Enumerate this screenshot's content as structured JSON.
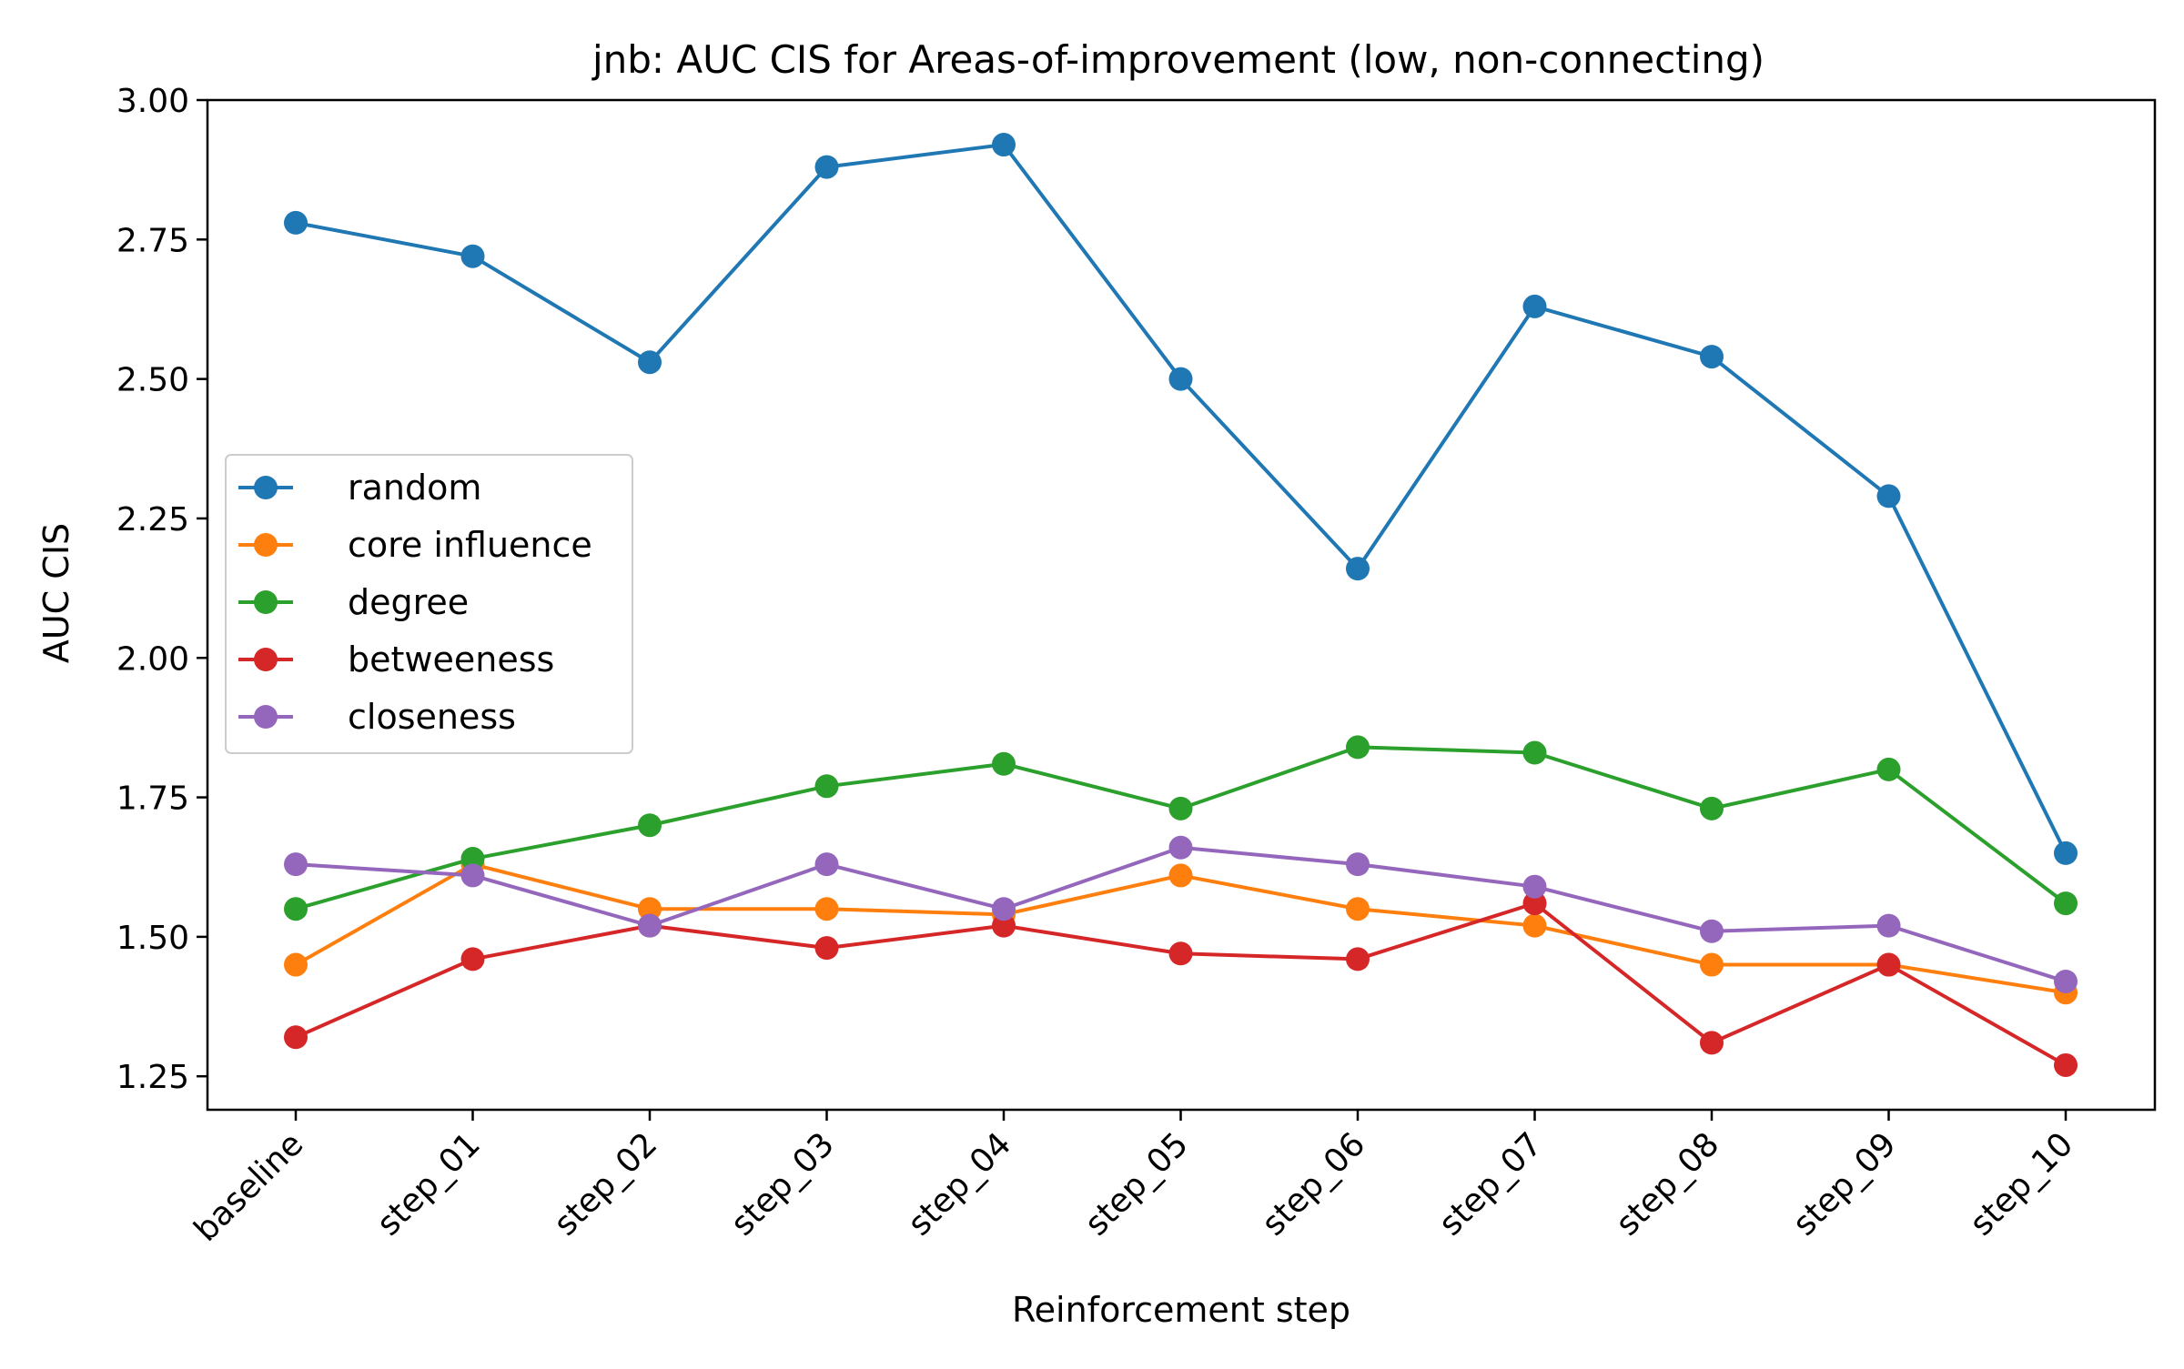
{
  "chart_data": {
    "type": "line",
    "title": "jnb: AUC CIS for Areas-of-improvement (low, non-connecting)",
    "xlabel": "Reinforcement step",
    "ylabel": "AUC CIS",
    "categories": [
      "baseline",
      "step_01",
      "step_02",
      "step_03",
      "step_04",
      "step_05",
      "step_06",
      "step_07",
      "step_08",
      "step_09",
      "step_10"
    ],
    "ylim": [
      1.19,
      3.0
    ],
    "yticks": [
      1.25,
      1.5,
      1.75,
      2.0,
      2.25,
      2.5,
      2.75,
      3.0
    ],
    "ytick_labels": [
      "1.25",
      "1.50",
      "1.75",
      "2.00",
      "2.25",
      "2.50",
      "2.75",
      "3.00"
    ],
    "grid": false,
    "legend_position": "center-left",
    "series": [
      {
        "name": "random",
        "color": "#1f77b4",
        "values": [
          2.78,
          2.72,
          2.53,
          2.88,
          2.92,
          2.5,
          2.16,
          2.63,
          2.54,
          2.29,
          1.65
        ]
      },
      {
        "name": "core influence",
        "color": "#ff7f0e",
        "values": [
          1.45,
          1.63,
          1.55,
          1.55,
          1.54,
          1.61,
          1.55,
          1.52,
          1.45,
          1.45,
          1.4
        ]
      },
      {
        "name": "degree",
        "color": "#2ca02c",
        "values": [
          1.55,
          1.64,
          1.7,
          1.77,
          1.81,
          1.73,
          1.84,
          1.83,
          1.73,
          1.8,
          1.56
        ]
      },
      {
        "name": "betweeness",
        "color": "#d62728",
        "values": [
          1.32,
          1.46,
          1.52,
          1.48,
          1.52,
          1.47,
          1.46,
          1.56,
          1.31,
          1.45,
          1.27
        ]
      },
      {
        "name": "closeness",
        "color": "#9467bd",
        "values": [
          1.63,
          1.61,
          1.52,
          1.63,
          1.55,
          1.66,
          1.63,
          1.59,
          1.51,
          1.52,
          1.42
        ]
      }
    ]
  }
}
